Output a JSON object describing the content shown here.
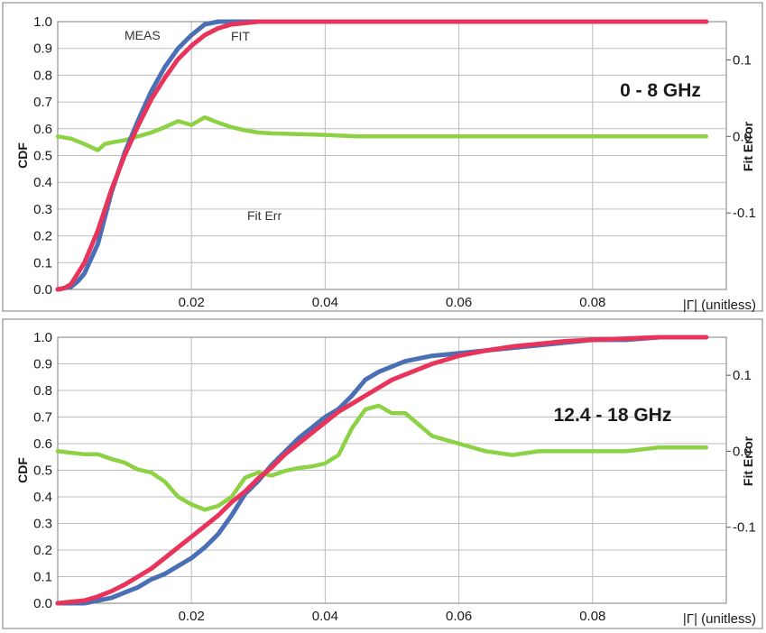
{
  "colors": {
    "meas": "#4a6fb5",
    "fit": "#e8345a",
    "fit_error": "#8cd244",
    "grid": "#bdbdbd"
  },
  "chart_data": [
    {
      "type": "line",
      "annotation": "0 - 8 GHz",
      "xlabel": "|Γ| (unitless)",
      "ylabel": "CDF",
      "y2label": "Fit Error",
      "xlim": [
        0,
        0.1
      ],
      "ylim": [
        0,
        1.0
      ],
      "y2lim": [
        -0.2,
        0.15
      ],
      "x_ticks": [
        "0.02",
        "0.04",
        "0.06",
        "0.08"
      ],
      "y_ticks": [
        "0.0",
        "0.1",
        "0.2",
        "0.3",
        "0.4",
        "0.5",
        "0.6",
        "0.7",
        "0.8",
        "0.9",
        "1.0"
      ],
      "y2_ticks": [
        "0.1",
        "0.0",
        "-0.1"
      ],
      "grid": true,
      "series_labels": [
        "MEAS",
        "FIT",
        "Fit Err"
      ],
      "series": [
        {
          "name": "MEAS",
          "axis": "left",
          "color_key": "meas",
          "x": [
            0,
            0.002,
            0.003,
            0.004,
            0.006,
            0.008,
            0.01,
            0.012,
            0.014,
            0.016,
            0.018,
            0.02,
            0.022,
            0.024,
            0.026,
            0.028,
            0.03,
            0.032,
            0.04,
            0.06,
            0.08,
            0.097
          ],
          "y": [
            0,
            0.01,
            0.03,
            0.06,
            0.17,
            0.36,
            0.51,
            0.63,
            0.74,
            0.83,
            0.9,
            0.95,
            0.99,
            1.0,
            1.0,
            1.0,
            1.0,
            1.0,
            1.0,
            1.0,
            1.0,
            1.0
          ]
        },
        {
          "name": "FIT",
          "axis": "left",
          "color_key": "fit",
          "x": [
            0,
            0.001,
            0.002,
            0.003,
            0.004,
            0.006,
            0.008,
            0.01,
            0.012,
            0.014,
            0.016,
            0.018,
            0.02,
            0.022,
            0.024,
            0.026,
            0.028,
            0.03,
            0.035,
            0.04,
            0.05,
            0.06,
            0.08,
            0.097
          ],
          "y": [
            0,
            0.005,
            0.02,
            0.06,
            0.1,
            0.22,
            0.37,
            0.5,
            0.61,
            0.71,
            0.79,
            0.86,
            0.91,
            0.95,
            0.975,
            0.99,
            0.995,
            1.0,
            1.0,
            1.0,
            1.0,
            1.0,
            1.0,
            1.0
          ]
        },
        {
          "name": "Fit Err",
          "axis": "right",
          "color_key": "fit_error",
          "x": [
            0,
            0.002,
            0.004,
            0.006,
            0.007,
            0.008,
            0.01,
            0.012,
            0.014,
            0.016,
            0.018,
            0.02,
            0.022,
            0.024,
            0.026,
            0.028,
            0.03,
            0.032,
            0.036,
            0.04,
            0.045,
            0.05,
            0.06,
            0.08,
            0.097
          ],
          "y": [
            0.0,
            -0.003,
            -0.01,
            -0.018,
            -0.01,
            -0.008,
            -0.005,
            0.0,
            0.005,
            0.012,
            0.02,
            0.015,
            0.025,
            0.018,
            0.012,
            0.008,
            0.005,
            0.004,
            0.003,
            0.002,
            0.0,
            0.0,
            0.0,
            0.0,
            0.0
          ]
        }
      ]
    },
    {
      "type": "line",
      "annotation": "12.4 - 18 GHz",
      "xlabel": "|Γ| (unitless)",
      "ylabel": "CDF",
      "y2label": "Fit Error",
      "xlim": [
        0,
        0.1
      ],
      "ylim": [
        0,
        1.0
      ],
      "y2lim": [
        -0.2,
        0.15
      ],
      "x_ticks": [
        "0.02",
        "0.04",
        "0.06",
        "0.08"
      ],
      "y_ticks": [
        "0.0",
        "0.1",
        "0.2",
        "0.3",
        "0.4",
        "0.5",
        "0.6",
        "0.7",
        "0.8",
        "0.9",
        "1.0"
      ],
      "y2_ticks": [
        "0.1",
        "0.0",
        "-0.1"
      ],
      "grid": true,
      "series": [
        {
          "name": "MEAS",
          "axis": "left",
          "color_key": "meas",
          "x": [
            0,
            0.004,
            0.006,
            0.008,
            0.01,
            0.012,
            0.014,
            0.016,
            0.018,
            0.02,
            0.022,
            0.024,
            0.026,
            0.028,
            0.03,
            0.032,
            0.034,
            0.036,
            0.038,
            0.04,
            0.042,
            0.044,
            0.046,
            0.048,
            0.05,
            0.052,
            0.054,
            0.056,
            0.058,
            0.06,
            0.064,
            0.068,
            0.072,
            0.076,
            0.08,
            0.085,
            0.09,
            0.097
          ],
          "y": [
            0,
            0.0,
            0.01,
            0.02,
            0.04,
            0.06,
            0.09,
            0.11,
            0.14,
            0.17,
            0.21,
            0.26,
            0.33,
            0.41,
            0.46,
            0.52,
            0.57,
            0.62,
            0.66,
            0.7,
            0.73,
            0.78,
            0.84,
            0.87,
            0.89,
            0.91,
            0.92,
            0.93,
            0.935,
            0.94,
            0.95,
            0.96,
            0.97,
            0.98,
            0.99,
            0.99,
            1.0,
            1.0
          ]
        },
        {
          "name": "FIT",
          "axis": "left",
          "color_key": "fit",
          "x": [
            0,
            0.004,
            0.006,
            0.008,
            0.01,
            0.012,
            0.014,
            0.016,
            0.018,
            0.02,
            0.022,
            0.024,
            0.026,
            0.028,
            0.03,
            0.032,
            0.034,
            0.036,
            0.038,
            0.04,
            0.042,
            0.044,
            0.046,
            0.048,
            0.05,
            0.052,
            0.054,
            0.056,
            0.058,
            0.06,
            0.064,
            0.068,
            0.072,
            0.076,
            0.08,
            0.085,
            0.09,
            0.097
          ],
          "y": [
            0,
            0.01,
            0.025,
            0.045,
            0.07,
            0.1,
            0.13,
            0.17,
            0.21,
            0.25,
            0.29,
            0.33,
            0.38,
            0.42,
            0.47,
            0.51,
            0.56,
            0.6,
            0.64,
            0.68,
            0.72,
            0.75,
            0.78,
            0.81,
            0.84,
            0.86,
            0.88,
            0.9,
            0.915,
            0.93,
            0.95,
            0.965,
            0.975,
            0.985,
            0.99,
            0.995,
            1.0,
            1.0
          ]
        },
        {
          "name": "Fit Err",
          "axis": "right",
          "color_key": "fit_error",
          "x": [
            0,
            0.004,
            0.006,
            0.008,
            0.01,
            0.012,
            0.014,
            0.016,
            0.018,
            0.02,
            0.022,
            0.024,
            0.026,
            0.028,
            0.03,
            0.032,
            0.034,
            0.036,
            0.038,
            0.04,
            0.042,
            0.044,
            0.046,
            0.048,
            0.05,
            0.052,
            0.054,
            0.056,
            0.058,
            0.06,
            0.064,
            0.068,
            0.072,
            0.076,
            0.08,
            0.085,
            0.09,
            0.097
          ],
          "y": [
            0.0,
            -0.004,
            -0.004,
            -0.01,
            -0.015,
            -0.024,
            -0.028,
            -0.04,
            -0.06,
            -0.07,
            -0.077,
            -0.072,
            -0.06,
            -0.035,
            -0.028,
            -0.032,
            -0.026,
            -0.022,
            -0.02,
            -0.016,
            -0.005,
            0.03,
            0.055,
            0.06,
            0.05,
            0.05,
            0.035,
            0.02,
            0.015,
            0.01,
            0.0,
            -0.005,
            0.0,
            0.0,
            0.0,
            0.0,
            0.005,
            0.005
          ]
        }
      ]
    }
  ]
}
